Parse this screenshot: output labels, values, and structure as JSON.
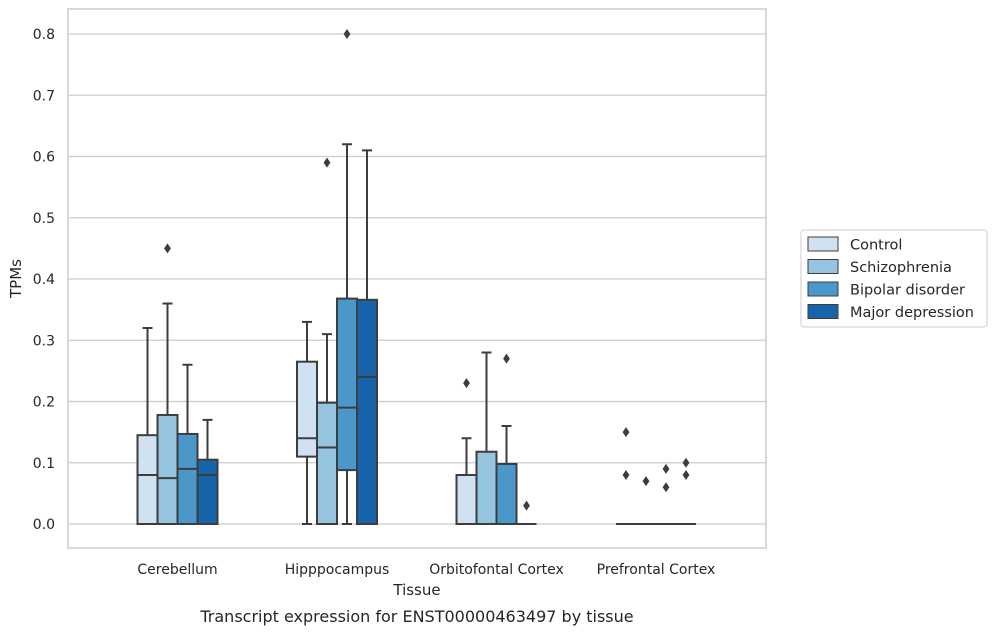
{
  "caption": "Transcript expression for ENST00000463497 by tissue",
  "chart_data": {
    "type": "box",
    "xlabel": "Tissue",
    "ylabel": "TPMs",
    "ylim": [
      -0.04,
      0.84
    ],
    "yticks": [
      "0.0",
      "0.1",
      "0.2",
      "0.3",
      "0.4",
      "0.5",
      "0.6",
      "0.7",
      "0.8"
    ],
    "grid": "horizontal",
    "legend_position": "right",
    "categories": [
      "Cerebellum",
      "Hipppocampus",
      "Orbitofontal Cortex",
      "Prefrontal Cortex"
    ],
    "series": [
      {
        "name": "Control",
        "color": "#d0e1f2",
        "boxes": [
          {
            "min": 0.0,
            "q1": 0.0,
            "median": 0.08,
            "q3": 0.145,
            "max": 0.32,
            "outliers": []
          },
          {
            "min": 0.0,
            "q1": 0.11,
            "median": 0.14,
            "q3": 0.265,
            "max": 0.33,
            "outliers": []
          },
          {
            "min": 0.0,
            "q1": 0.0,
            "median": 0.0,
            "q3": 0.08,
            "max": 0.14,
            "outliers": [
              0.23
            ]
          },
          {
            "min": 0.0,
            "q1": 0.0,
            "median": 0.0,
            "q3": 0.0,
            "max": 0.0,
            "outliers": [
              0.15,
              0.08
            ]
          }
        ]
      },
      {
        "name": "Schizophrenia",
        "color": "#94c4df",
        "boxes": [
          {
            "min": 0.0,
            "q1": 0.0,
            "median": 0.075,
            "q3": 0.178,
            "max": 0.36,
            "outliers": [
              0.45
            ]
          },
          {
            "min": 0.0,
            "q1": 0.0,
            "median": 0.125,
            "q3": 0.198,
            "max": 0.31,
            "outliers": [
              0.59
            ]
          },
          {
            "min": 0.0,
            "q1": 0.0,
            "median": 0.0,
            "q3": 0.118,
            "max": 0.28,
            "outliers": []
          },
          {
            "min": 0.0,
            "q1": 0.0,
            "median": 0.0,
            "q3": 0.0,
            "max": 0.0,
            "outliers": [
              0.07
            ]
          }
        ]
      },
      {
        "name": "Bipolar disorder",
        "color": "#4a98c9",
        "boxes": [
          {
            "min": 0.0,
            "q1": 0.0,
            "median": 0.09,
            "q3": 0.147,
            "max": 0.26,
            "outliers": []
          },
          {
            "min": 0.0,
            "q1": 0.088,
            "median": 0.19,
            "q3": 0.368,
            "max": 0.62,
            "outliers": [
              0.8
            ]
          },
          {
            "min": 0.0,
            "q1": 0.0,
            "median": 0.0,
            "q3": 0.098,
            "max": 0.16,
            "outliers": [
              0.27
            ]
          },
          {
            "min": 0.0,
            "q1": 0.0,
            "median": 0.0,
            "q3": 0.0,
            "max": 0.0,
            "outliers": [
              0.09,
              0.06
            ]
          }
        ]
      },
      {
        "name": "Major depression",
        "color": "#1764ab",
        "boxes": [
          {
            "min": 0.0,
            "q1": 0.0,
            "median": 0.08,
            "q3": 0.105,
            "max": 0.17,
            "outliers": []
          },
          {
            "min": 0.0,
            "q1": 0.0,
            "median": 0.24,
            "q3": 0.366,
            "max": 0.61,
            "outliers": []
          },
          {
            "min": 0.0,
            "q1": 0.0,
            "median": 0.0,
            "q3": 0.0,
            "max": 0.0,
            "outliers": [
              0.03
            ]
          },
          {
            "min": 0.0,
            "q1": 0.0,
            "median": 0.0,
            "q3": 0.0,
            "max": 0.0,
            "outliers": [
              0.1,
              0.08
            ]
          }
        ]
      }
    ]
  }
}
